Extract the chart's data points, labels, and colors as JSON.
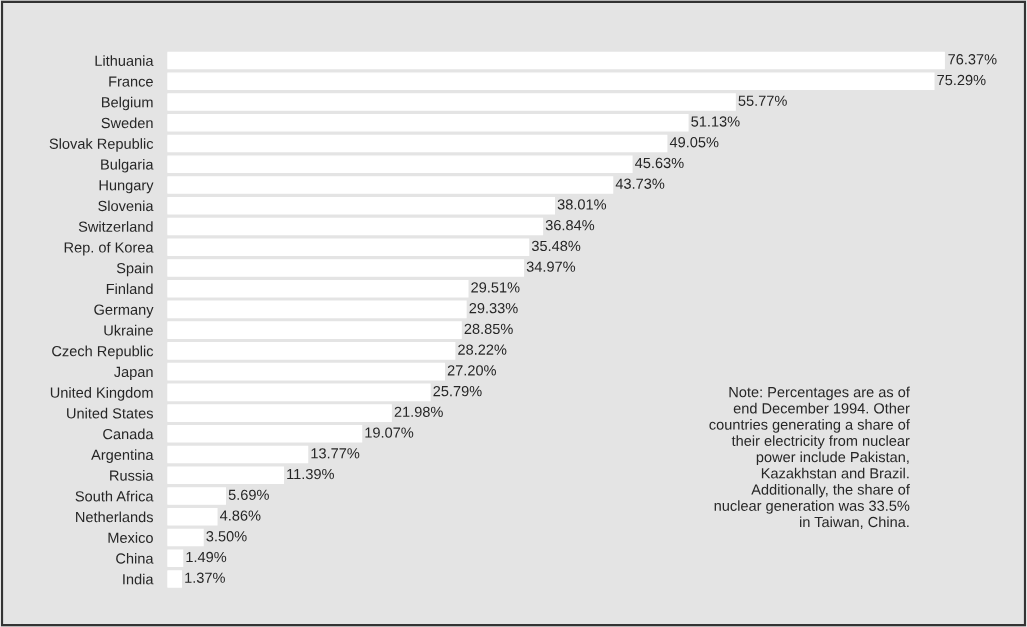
{
  "chart_data": {
    "type": "bar",
    "orientation": "horizontal",
    "categories": [
      "Lithuania",
      "France",
      "Belgium",
      "Sweden",
      "Slovak Republic",
      "Bulgaria",
      "Hungary",
      "Slovenia",
      "Switzerland",
      "Rep. of Korea",
      "Spain",
      "Finland",
      "Germany",
      "Ukraine",
      "Czech Republic",
      "Japan",
      "United Kingdom",
      "United States",
      "Canada",
      "Argentina",
      "Russia",
      "South Africa",
      "Netherlands",
      "Mexico",
      "China",
      "India"
    ],
    "values": [
      76.37,
      75.29,
      55.77,
      51.13,
      49.05,
      45.63,
      43.73,
      38.01,
      36.84,
      35.48,
      34.97,
      29.51,
      29.33,
      28.85,
      28.22,
      27.2,
      25.79,
      21.98,
      19.07,
      13.77,
      11.39,
      5.69,
      4.86,
      3.5,
      1.49,
      1.37
    ],
    "value_labels": [
      "76.37%",
      "75.29%",
      "55.77%",
      "51.13%",
      "49.05%",
      "45.63%",
      "43.73%",
      "38.01%",
      "36.84%",
      "35.48%",
      "34.97%",
      "29.51%",
      "29.33%",
      "28.85%",
      "28.22%",
      "27.20%",
      "25.79%",
      "21.98%",
      "19.07%",
      "13.77%",
      "11.39%",
      "5.69%",
      "4.86%",
      "3.50%",
      "1.49%",
      "1.37%"
    ],
    "color": "#ffffff",
    "annotations": [
      "Note: Percentages are as of\nend December 1994. Other\ncountries generating a share of\ntheir electricity from nuclear\npower include Pakistan,\nKazakhstan and Brazil.\nAdditionally, the share of\nnuclear generation was 33.5%\nin Taiwan, China."
    ],
    "grid": false,
    "legend": false
  }
}
